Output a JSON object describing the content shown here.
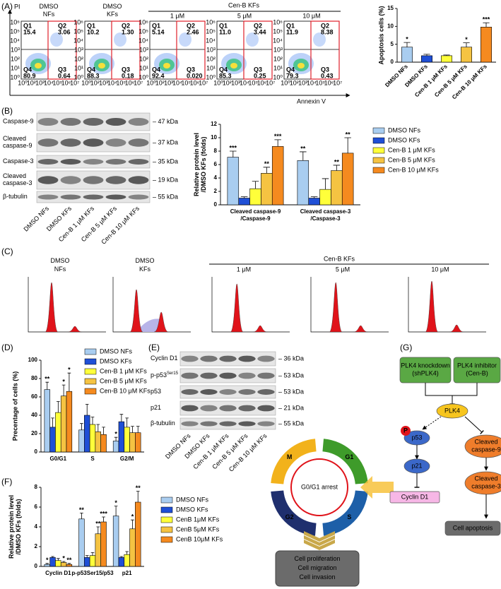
{
  "panel_labels": [
    "(A)",
    "(B)",
    "(C)",
    "(D)",
    "(E)",
    "(F)",
    "(G)"
  ],
  "flow": {
    "titles": [
      [
        "DMSO",
        "NFs"
      ],
      [
        "DMSO",
        "KFs"
      ]
    ],
    "group_title": "Cen-B KFs",
    "concentrations": [
      "1 μM",
      "5 μM",
      "10 μM"
    ],
    "y_axis": "PI",
    "x_axis": "Annexin V",
    "x_ticks": [
      "10⁰",
      "10²",
      "10³",
      "10⁴",
      "10⁵",
      "10⁶",
      "10⁷"
    ],
    "y_ticks": [
      "10⁰",
      "10¹",
      "10²",
      "10³",
      "10⁴",
      "10⁵",
      "10⁶"
    ],
    "quadrant_names": [
      "Q1",
      "Q2",
      "Q4",
      "Q3"
    ],
    "plots": [
      [
        "15.4",
        "3.06",
        "80.9",
        "0.64"
      ],
      [
        "10.2",
        "1.30",
        "88.3",
        "0.18"
      ],
      [
        "5.14",
        "2.46",
        "92.4",
        "0.020"
      ],
      [
        "11.0",
        "3.44",
        "85.3",
        "0.25"
      ],
      [
        "11.9",
        "8.38",
        "79.3",
        "0.43"
      ]
    ]
  },
  "blot_b": {
    "rows": [
      [
        "Caspase-9"
      ],
      [
        "Cleaved",
        "caspase-9"
      ],
      [
        "Caspase-3"
      ],
      [
        "Cleaved",
        "caspase-3"
      ],
      [
        "β-tubulin"
      ]
    ],
    "sizes": [
      "– 47 kDa",
      "– 37 kDa",
      "– 35 kDa",
      "– 19 kDa",
      "– 55 kDa"
    ],
    "lanes": [
      "DMSO NFs",
      "DMSO KFs",
      "Cen-B 1 μM KFs",
      "Cen-B 5 μM KFs",
      "Cen-B 10 μM KFs"
    ]
  },
  "cell_cycle": {
    "titles": [
      [
        "DMSO",
        "NFs"
      ],
      [
        "DMSO",
        "KFs"
      ]
    ],
    "group_title": "Cen-B KFs",
    "concentrations": [
      "1 μM",
      "5 μM",
      "10 μM"
    ]
  },
  "blot_e": {
    "rows": [
      {
        "label": "Cyclin D1"
      },
      {
        "label": "p-p53",
        "sup": "Ser15"
      },
      {
        "label": "p53"
      },
      {
        "label": "p21"
      },
      {
        "label": "β-tubulin"
      }
    ],
    "sizes": [
      "– 36 kDa",
      "– 53 kDa",
      "– 53 kDa",
      "– 21 kDa",
      "– 55 kDa"
    ],
    "lanes": [
      "DMSO NFs",
      "DMSO KFs",
      "Cen-B 1 μM KFs",
      "Cen-B 5 μM KFs",
      "Cen-B 10 μM KFs"
    ]
  },
  "cycle_diagram": {
    "center": "G0/G1 arrest",
    "phases": [
      "M",
      "G1",
      "S",
      "G2"
    ],
    "outcome": [
      "Cell proliferation",
      "Cell migration",
      "Cell invasion"
    ]
  },
  "pathway": {
    "knockdown": [
      "PLK4 knockdown",
      "(shPLK4)"
    ],
    "inhibitor": [
      "PLK4 inhibitor",
      "(Cen-B)"
    ],
    "plk4": "PLK4",
    "phospho": "P",
    "p53": "p53",
    "p21": "p21",
    "cyclin": "Cyclin D1",
    "casp9": [
      "Cleaved",
      "caspase-9"
    ],
    "casp3": [
      "Cleaved",
      "caspase-3"
    ],
    "apoptosis": "Cell apoptosis"
  },
  "chart_data": [
    {
      "type": "bar",
      "y_label": "Apoptosis cells (%)",
      "categories": [
        "DMSO NFs",
        "DMSO KFs",
        "Cen-B 1 μM KFs",
        "Cen-B 5 μM KFs",
        "Cen-B 10 μM KFs"
      ],
      "values": [
        4.2,
        1.8,
        1.8,
        4.2,
        9.8
      ],
      "errors": [
        1.3,
        0.4,
        0.2,
        1.2,
        1.2
      ],
      "significance": [
        "*",
        null,
        null,
        "*",
        "***"
      ],
      "colors": [
        "#a9cdf0",
        "#1f4fd6",
        "#ffff3a",
        "#f5c342",
        "#f58a1f"
      ],
      "ylim": [
        0,
        15
      ],
      "yticks": [
        0,
        5,
        10,
        15
      ]
    },
    {
      "type": "bar",
      "y_label": [
        "Relative protein level",
        "/DMSO KFs (folds)"
      ],
      "categories": [
        [
          "Cleaved caspase-9",
          "/Caspase-9"
        ],
        [
          "Cleaved caspase-3",
          "/Caspase-3"
        ]
      ],
      "series": [
        {
          "name": "DMSO NFs",
          "color": "#a9cdf0",
          "values": [
            7.1,
            6.6
          ],
          "errors": [
            0.9,
            1.3
          ],
          "significance": [
            "***",
            "**"
          ]
        },
        {
          "name": "DMSO KFs",
          "color": "#1f4fd6",
          "values": [
            1.0,
            1.0
          ],
          "errors": [
            0.2,
            0.2
          ],
          "significance": [
            null,
            null
          ]
        },
        {
          "name": "Cen-B 1 μM KFs",
          "color": "#ffff3a",
          "values": [
            2.4,
            2.3
          ],
          "errors": [
            1.1,
            1.6
          ],
          "significance": [
            null,
            null
          ]
        },
        {
          "name": "Cen-B 5 μM KFs",
          "color": "#f5c342",
          "values": [
            4.7,
            5.1
          ],
          "errors": [
            0.9,
            0.8
          ],
          "significance": [
            "**",
            "**"
          ]
        },
        {
          "name": "Cen-B 10 μM KFs",
          "color": "#f58a1f",
          "values": [
            8.7,
            7.7
          ],
          "errors": [
            1.0,
            2.3
          ],
          "significance": [
            "***",
            "**"
          ]
        }
      ],
      "ylim": [
        0,
        12
      ],
      "yticks": [
        0,
        2,
        4,
        6,
        8,
        10,
        12
      ]
    },
    {
      "type": "bar",
      "y_label": "Precentage of cells (%)",
      "categories": [
        "G0/G1",
        "S",
        "G2/M"
      ],
      "series": [
        {
          "name": "DMSO NFs",
          "color": "#a9cdf0",
          "values": [
            68,
            24,
            12
          ],
          "errors": [
            8,
            7,
            4
          ],
          "significance": [
            "**",
            null,
            "*"
          ]
        },
        {
          "name": "DMSO KFs",
          "color": "#1f4fd6",
          "values": [
            27,
            40,
            33
          ],
          "errors": [
            10,
            12,
            8
          ],
          "significance": [
            null,
            null,
            null
          ]
        },
        {
          "name": "Cen-B 1 μM KFs",
          "color": "#ffff3a",
          "values": [
            43,
            30,
            27
          ],
          "errors": [
            12,
            8,
            10
          ],
          "significance": [
            null,
            null,
            null
          ]
        },
        {
          "name": "Cen-B 5 μM KFs",
          "color": "#f5c342",
          "values": [
            61,
            22,
            21
          ],
          "errors": [
            12,
            8,
            7
          ],
          "significance": [
            "*",
            null,
            null
          ]
        },
        {
          "name": "Cen-B 10 μM KFs",
          "color": "#f58a1f",
          "values": [
            66,
            19,
            21
          ],
          "errors": [
            20,
            8,
            7
          ],
          "significance": [
            "*",
            null,
            null
          ]
        }
      ],
      "ylim": [
        0,
        100
      ],
      "yticks": [
        0,
        20,
        40,
        60,
        80,
        100
      ]
    },
    {
      "type": "bar",
      "y_label": [
        "Relative protein level",
        "/DMSO KFs (folds)"
      ],
      "categories": [
        "Cyclin D1",
        "p-p53Ser15/p53",
        "p21"
      ],
      "series": [
        {
          "name": "DMSO NFs",
          "color": "#a9cdf0",
          "values": [
            0.2,
            4.8,
            5.1
          ],
          "errors": [
            0.1,
            0.6,
            1.0
          ],
          "significance": [
            "*",
            "**",
            "*"
          ]
        },
        {
          "name": "DMSO KFs",
          "color": "#1f4fd6",
          "values": [
            0.9,
            0.9,
            0.9
          ],
          "errors": [
            0.1,
            0.2,
            0.1
          ],
          "significance": [
            null,
            null,
            null
          ]
        },
        {
          "name": "CenB 1μM KFs",
          "color": "#ffff3a",
          "values": [
            0.6,
            1.1,
            1.2
          ],
          "errors": [
            0.2,
            0.3,
            0.3
          ],
          "significance": [
            null,
            null,
            null
          ]
        },
        {
          "name": "CenB 5μM KFs",
          "color": "#f5c342",
          "values": [
            0.4,
            3.3,
            3.8
          ],
          "errors": [
            0.1,
            0.7,
            0.9
          ],
          "significance": [
            "*",
            "**",
            "*"
          ]
        },
        {
          "name": "CenB 10μM KFs",
          "color": "#f58a1f",
          "values": [
            0.2,
            4.5,
            6.5
          ],
          "errors": [
            0.1,
            0.5,
            1.1
          ],
          "significance": [
            "**",
            "***",
            "**"
          ]
        }
      ],
      "ylim": [
        0,
        8
      ],
      "yticks": [
        0,
        2,
        4,
        6,
        8
      ]
    }
  ]
}
